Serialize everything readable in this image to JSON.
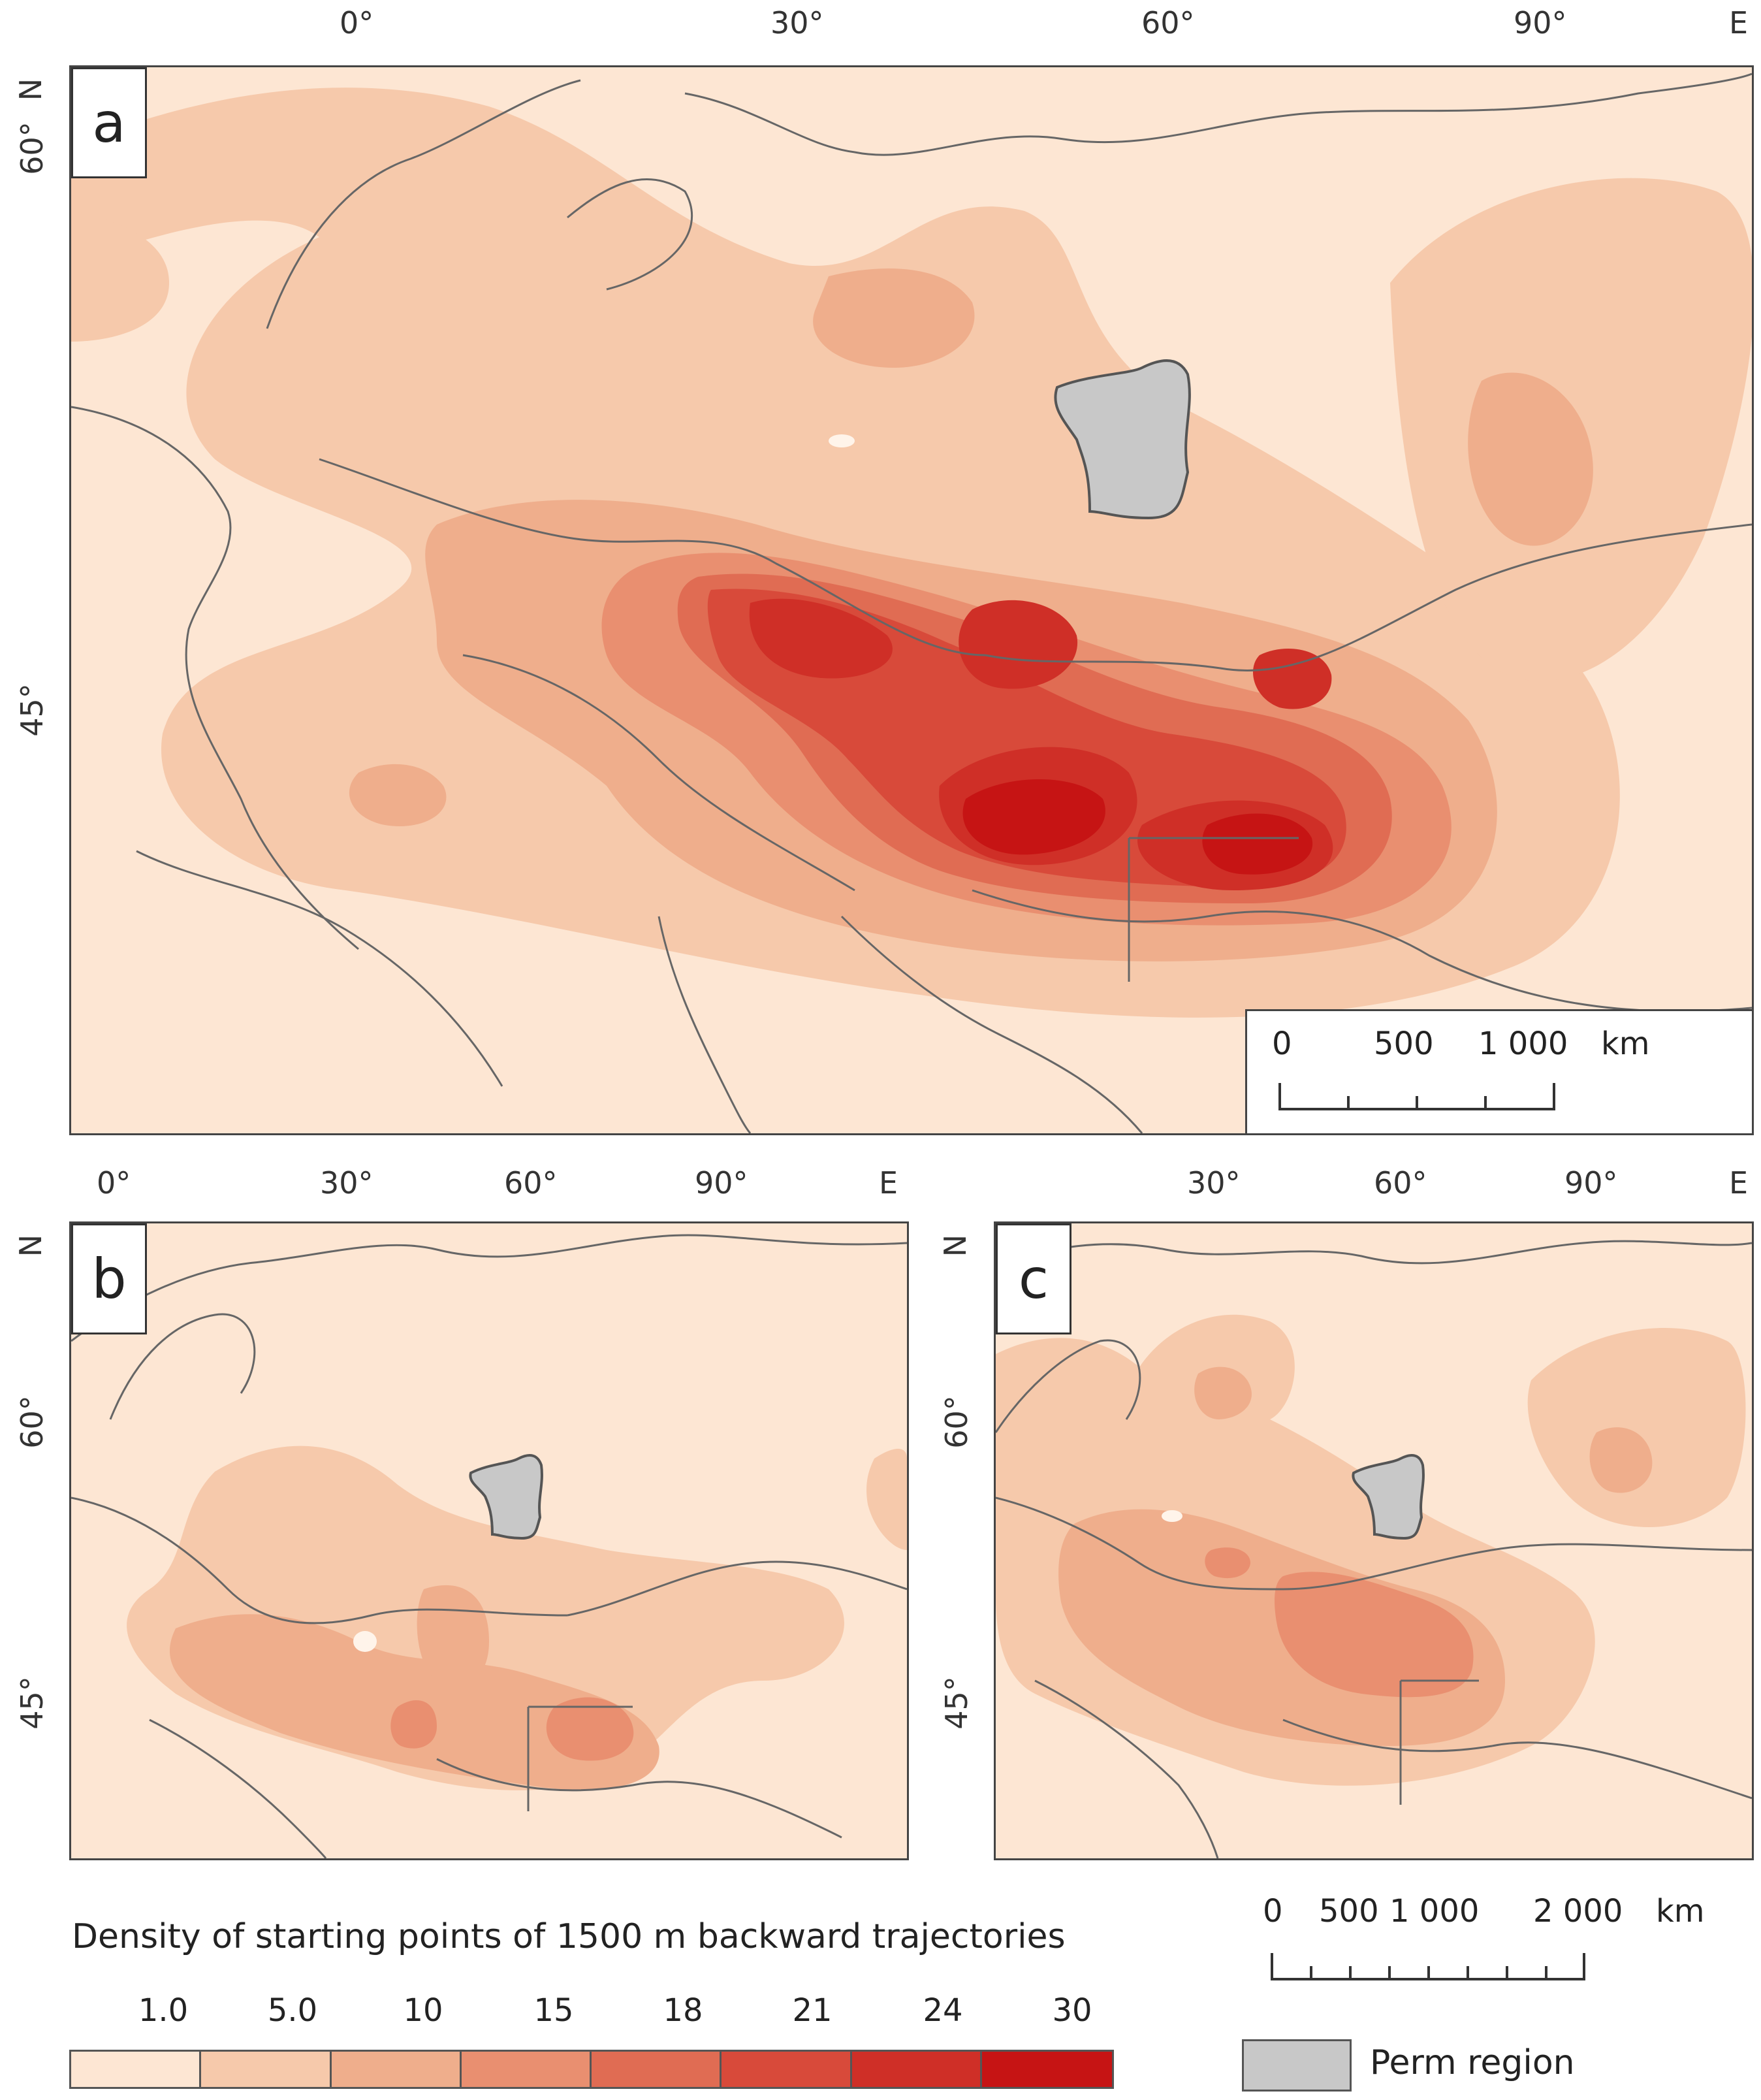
{
  "panels": {
    "a": {
      "letter": "a",
      "top_ticks": [
        "0°",
        "30°",
        "60°",
        "90°"
      ],
      "top_unit": "E",
      "left_unit": "N",
      "left_ticks": [
        "60°",
        "45°"
      ]
    },
    "b": {
      "letter": "b",
      "top_ticks": [
        "0°",
        "30°",
        "60°",
        "90°"
      ],
      "top_unit": "E",
      "left_unit": "N",
      "left_ticks": [
        "60°",
        "45°"
      ]
    },
    "c": {
      "letter": "c",
      "top_ticks": [
        "30°",
        "60°",
        "90°"
      ],
      "top_unit": "E",
      "left_unit": "N",
      "left_ticks": [
        "60°",
        "45°"
      ]
    }
  },
  "scalebar_a": {
    "labels": [
      "0",
      "500",
      "1 000",
      "km"
    ]
  },
  "scalebar_bc": {
    "labels": [
      "0",
      "500",
      "1 000",
      "2 000",
      "km"
    ]
  },
  "legend": {
    "title": "Density of starting points of 1500 m backward trajectories",
    "class_labels": [
      "1.0",
      "5.0",
      "10",
      "15",
      "18",
      "21",
      "24",
      "30"
    ],
    "class_colors": [
      "#fde6d3",
      "#f6c9ab",
      "#efae8c",
      "#e98f70",
      "#e06c53",
      "#d84a3a",
      "#cf2f27",
      "#c61414"
    ],
    "perm_label": "Perm region",
    "perm_color": "#c8c8c8"
  },
  "colors": {
    "background": "#fde6d3",
    "border": "#555555",
    "boundaries": "#666666"
  }
}
